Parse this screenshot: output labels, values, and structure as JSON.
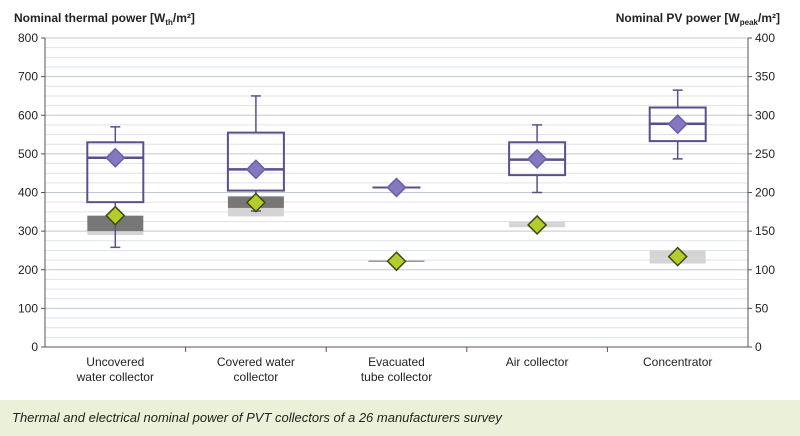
{
  "caption": "Thermal and electrical nominal power of PVT collectors of a 26 manufacturers survey",
  "chart_data": {
    "type": "box",
    "left_axis": {
      "title_main": "Nominal thermal power [W",
      "title_sub": "th",
      "title_tail": "/m²]",
      "range": [
        0,
        800
      ],
      "ticks": [
        0,
        100,
        200,
        300,
        400,
        500,
        600,
        700,
        800
      ],
      "tick_labels": [
        "0",
        "100",
        "200",
        "300",
        "400",
        "500",
        "600",
        "700",
        "800"
      ]
    },
    "right_axis": {
      "title_main": "Nominal PV power [W",
      "title_sub": "peak",
      "title_tail": "/m²]",
      "range": [
        0,
        400
      ],
      "ticks": [
        0,
        50,
        100,
        150,
        200,
        250,
        300,
        350,
        400
      ],
      "tick_labels": [
        "0",
        "50",
        "100",
        "150",
        "200",
        "250",
        "300",
        "350",
        "400"
      ]
    },
    "grid": true,
    "categories": [
      [
        "Uncovered",
        "water collector"
      ],
      [
        "Covered water",
        "collector"
      ],
      [
        "Evacuated",
        "tube collector"
      ],
      [
        "Air collector"
      ],
      [
        "Concentrator"
      ]
    ],
    "thermal_box": [
      {
        "min": 258,
        "q1": 375,
        "median": 490,
        "q3": 530,
        "max": 570,
        "mean": 490
      },
      {
        "min": 352,
        "q1": 405,
        "median": 460,
        "q3": 555,
        "max": 650,
        "mean": 460
      },
      {
        "min": 413,
        "q1": 413,
        "median": 413,
        "q3": 413,
        "max": 413,
        "mean": 413
      },
      {
        "min": 400,
        "q1": 445,
        "median": 485,
        "q3": 530,
        "max": 575,
        "mean": 487
      },
      {
        "min": 487,
        "q1": 533,
        "median": 578,
        "q3": 620,
        "max": 665,
        "mean": 577
      }
    ],
    "pv_box": [
      {
        "min": 140,
        "q1": 145,
        "median": 150,
        "q3": 170,
        "max": 170,
        "mean": 170
      },
      {
        "min": 169,
        "q1": 169,
        "median": 180,
        "q3": 195,
        "max": 195,
        "mean": 187
      },
      {
        "min": 111,
        "q1": 111,
        "median": 111,
        "q3": 111,
        "max": 111,
        "mean": 111
      },
      {
        "min": 155,
        "q1": 155,
        "median": 160,
        "q3": 162,
        "max": 162,
        "mean": 158
      },
      {
        "min": 108,
        "q1": 108,
        "median": 115,
        "q3": 125,
        "max": 125,
        "mean": 117
      }
    ],
    "colors": {
      "thermal_box": "#5b4f8a",
      "thermal_mean": "#8578c0",
      "pv_box_dark": "#777777",
      "pv_box_light": "#d4d4d4",
      "pv_mean": "#b5cc2a",
      "grid": "#bfc7d1"
    }
  }
}
